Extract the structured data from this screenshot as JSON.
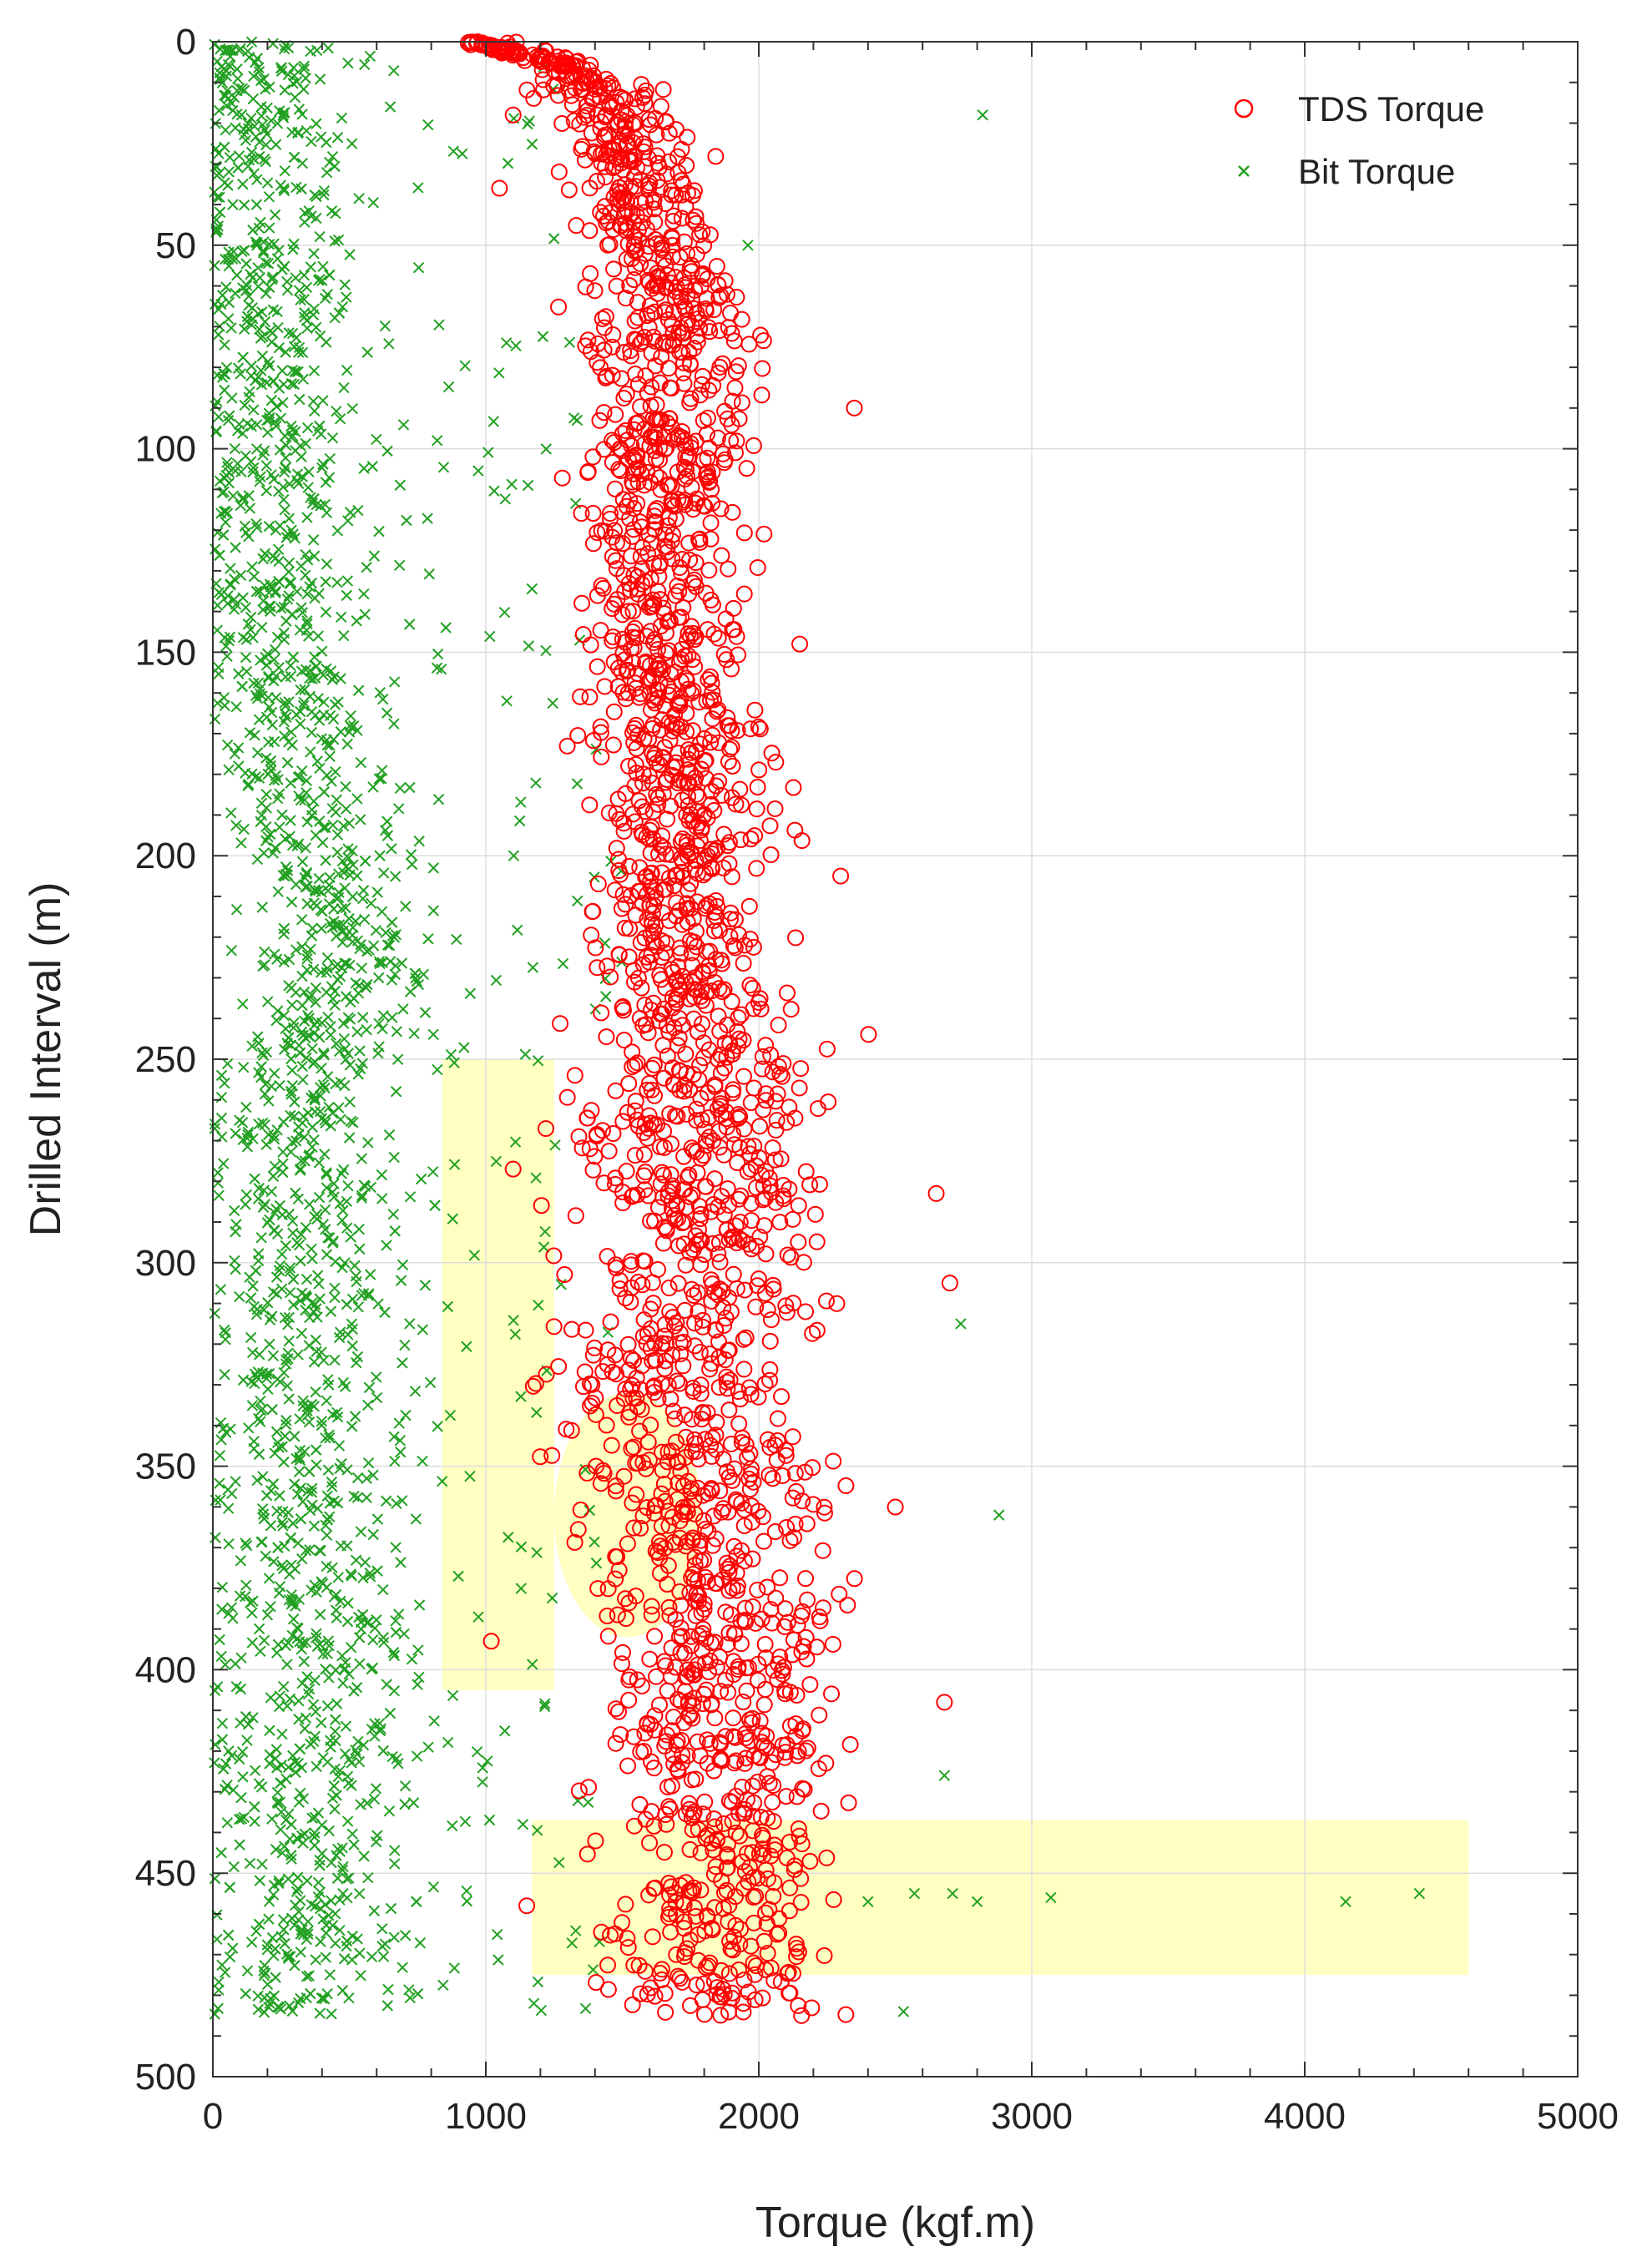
{
  "chart_data": {
    "type": "scatter",
    "title": "",
    "xlabel": "Torque (kgf.m)",
    "ylabel": "Drilled Interval (m)",
    "xlim": [
      0,
      5000
    ],
    "ylim": [
      0,
      500
    ],
    "y_axis_inverted": true,
    "x_ticks": [
      0,
      1000,
      2000,
      3000,
      4000,
      5000
    ],
    "y_ticks": [
      0,
      50,
      100,
      150,
      200,
      250,
      300,
      350,
      400,
      450,
      500
    ],
    "grid": true,
    "legend_position": "top-right",
    "series": [
      {
        "name": "TDS Torque",
        "marker": "open-circle",
        "color": "#ff0000",
        "profile": [
          {
            "depth": 0,
            "x": 1000
          },
          {
            "depth": 5,
            "x": 1300
          },
          {
            "depth": 20,
            "x": 1480
          },
          {
            "depth": 40,
            "x": 1580
          },
          {
            "depth": 60,
            "x": 1650
          },
          {
            "depth": 80,
            "x": 1680
          },
          {
            "depth": 100,
            "x": 1660
          },
          {
            "depth": 130,
            "x": 1650
          },
          {
            "depth": 160,
            "x": 1650
          },
          {
            "depth": 180,
            "x": 1770
          },
          {
            "depth": 210,
            "x": 1700
          },
          {
            "depth": 240,
            "x": 1780
          },
          {
            "depth": 270,
            "x": 1800
          },
          {
            "depth": 300,
            "x": 1800
          },
          {
            "depth": 330,
            "x": 1700
          },
          {
            "depth": 360,
            "x": 1830
          },
          {
            "depth": 390,
            "x": 1850
          },
          {
            "depth": 420,
            "x": 1850
          },
          {
            "depth": 445,
            "x": 1900
          },
          {
            "depth": 465,
            "x": 1800
          },
          {
            "depth": 485,
            "x": 1850
          }
        ],
        "outliers": [
          {
            "x": 2350,
            "y": 90
          },
          {
            "x": 2150,
            "y": 148
          },
          {
            "x": 2300,
            "y": 205
          },
          {
            "x": 2700,
            "y": 305
          },
          {
            "x": 2650,
            "y": 283
          },
          {
            "x": 2680,
            "y": 408
          },
          {
            "x": 1050,
            "y": 36
          },
          {
            "x": 1100,
            "y": 18
          },
          {
            "x": 1020,
            "y": 393
          },
          {
            "x": 1100,
            "y": 277
          },
          {
            "x": 1150,
            "y": 458
          }
        ]
      },
      {
        "name": "Bit Torque",
        "marker": "x",
        "color": "#22a022",
        "profile": [
          {
            "depth": 0,
            "x": 150
          },
          {
            "depth": 40,
            "x": 200
          },
          {
            "depth": 100,
            "x": 250
          },
          {
            "depth": 150,
            "x": 250
          },
          {
            "depth": 200,
            "x": 400
          },
          {
            "depth": 230,
            "x": 500
          },
          {
            "depth": 250,
            "x": 350
          },
          {
            "depth": 270,
            "x": 300
          },
          {
            "depth": 300,
            "x": 350
          },
          {
            "depth": 350,
            "x": 350
          },
          {
            "depth": 400,
            "x": 350
          },
          {
            "depth": 450,
            "x": 350
          },
          {
            "depth": 485,
            "x": 350
          }
        ],
        "outliers": [
          {
            "x": 2820,
            "y": 18
          },
          {
            "x": 1960,
            "y": 50
          },
          {
            "x": 2740,
            "y": 315
          },
          {
            "x": 2880,
            "y": 362
          },
          {
            "x": 2680,
            "y": 426
          },
          {
            "x": 2400,
            "y": 457
          },
          {
            "x": 2570,
            "y": 455
          },
          {
            "x": 2710,
            "y": 455
          },
          {
            "x": 2800,
            "y": 457
          },
          {
            "x": 3070,
            "y": 456
          },
          {
            "x": 4150,
            "y": 457
          },
          {
            "x": 4420,
            "y": 455
          },
          {
            "x": 2530,
            "y": 484
          }
        ]
      }
    ],
    "highlight_regions": [
      {
        "shape": "rect",
        "x0": 840,
        "x1": 1250,
        "y0": 250,
        "y1": 405,
        "color": "#ffff99"
      },
      {
        "shape": "ellipse",
        "cx": 1520,
        "cy": 362,
        "rx": 270,
        "ry": 30,
        "color": "#ffff99"
      },
      {
        "shape": "rect",
        "x0": 1170,
        "x1": 4600,
        "y0": 437,
        "y1": 475,
        "color": "#ffff99"
      }
    ]
  }
}
